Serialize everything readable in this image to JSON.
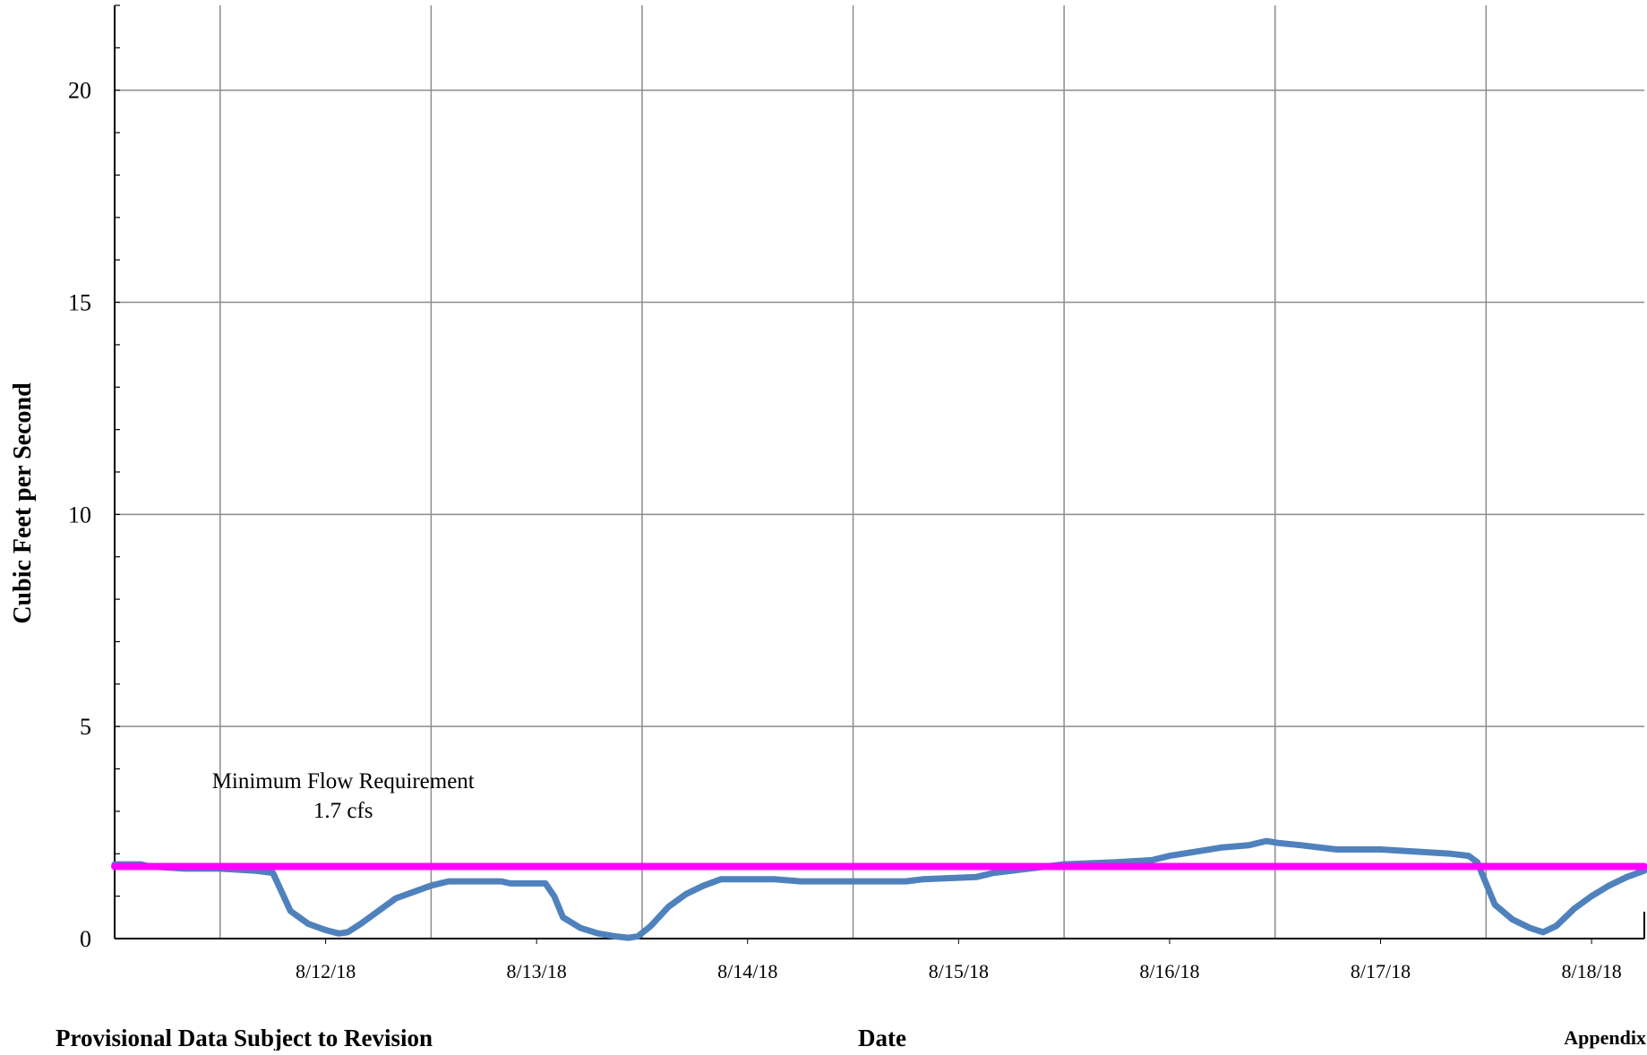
{
  "chart_data": {
    "type": "line",
    "ylabel": "Cubic Feet per Second",
    "xlabel": "Date",
    "ylim": [
      0,
      22
    ],
    "xlim": [
      "2018-08-11 12:00",
      "2018-08-18 18:00"
    ],
    "yticks": [
      0,
      5,
      10,
      15,
      20
    ],
    "xtick_labels": [
      "8/12/18",
      "8/13/18",
      "8/14/18",
      "8/15/18",
      "8/16/18",
      "8/17/18",
      "8/18/18"
    ],
    "grid": true,
    "series": [
      {
        "color": "#4f81bd",
        "points": [
          [
            "2018-08-11 12:00",
            1.75
          ],
          [
            "2018-08-11 15:00",
            1.75
          ],
          [
            "2018-08-11 16:00",
            1.7
          ],
          [
            "2018-08-11 20:00",
            1.65
          ],
          [
            "2018-08-12 00:00",
            1.65
          ],
          [
            "2018-08-12 04:00",
            1.6
          ],
          [
            "2018-08-12 06:00",
            1.55
          ],
          [
            "2018-08-12 07:00",
            1.1
          ],
          [
            "2018-08-12 08:00",
            0.65
          ],
          [
            "2018-08-12 10:00",
            0.35
          ],
          [
            "2018-08-12 12:00",
            0.2
          ],
          [
            "2018-08-12 13:30",
            0.12
          ],
          [
            "2018-08-12 14:30",
            0.15
          ],
          [
            "2018-08-12 16:00",
            0.35
          ],
          [
            "2018-08-12 18:00",
            0.65
          ],
          [
            "2018-08-12 20:00",
            0.95
          ],
          [
            "2018-08-12 22:00",
            1.1
          ],
          [
            "2018-08-13 00:00",
            1.25
          ],
          [
            "2018-08-13 02:00",
            1.35
          ],
          [
            "2018-08-13 08:00",
            1.35
          ],
          [
            "2018-08-13 09:00",
            1.3
          ],
          [
            "2018-08-13 13:00",
            1.3
          ],
          [
            "2018-08-13 14:00",
            1.0
          ],
          [
            "2018-08-13 15:00",
            0.5
          ],
          [
            "2018-08-13 17:00",
            0.25
          ],
          [
            "2018-08-13 19:00",
            0.12
          ],
          [
            "2018-08-13 21:00",
            0.05
          ],
          [
            "2018-08-13 22:30",
            0.02
          ],
          [
            "2018-08-13 23:30",
            0.05
          ],
          [
            "2018-08-14 01:00",
            0.3
          ],
          [
            "2018-08-14 03:00",
            0.75
          ],
          [
            "2018-08-14 05:00",
            1.05
          ],
          [
            "2018-08-14 07:00",
            1.25
          ],
          [
            "2018-08-14 09:00",
            1.4
          ],
          [
            "2018-08-14 15:00",
            1.4
          ],
          [
            "2018-08-14 18:00",
            1.35
          ],
          [
            "2018-08-15 06:00",
            1.35
          ],
          [
            "2018-08-15 08:00",
            1.4
          ],
          [
            "2018-08-15 14:00",
            1.45
          ],
          [
            "2018-08-15 16:00",
            1.55
          ],
          [
            "2018-08-15 20:00",
            1.65
          ],
          [
            "2018-08-16 00:00",
            1.75
          ],
          [
            "2018-08-16 06:00",
            1.8
          ],
          [
            "2018-08-16 10:00",
            1.85
          ],
          [
            "2018-08-16 12:00",
            1.95
          ],
          [
            "2018-08-16 15:00",
            2.05
          ],
          [
            "2018-08-16 18:00",
            2.15
          ],
          [
            "2018-08-16 21:00",
            2.2
          ],
          [
            "2018-08-16 23:00",
            2.3
          ],
          [
            "2018-08-17 00:30",
            2.25
          ],
          [
            "2018-08-17 03:00",
            2.2
          ],
          [
            "2018-08-17 05:00",
            2.15
          ],
          [
            "2018-08-17 07:00",
            2.1
          ],
          [
            "2018-08-17 12:00",
            2.1
          ],
          [
            "2018-08-17 16:00",
            2.05
          ],
          [
            "2018-08-17 20:00",
            2.0
          ],
          [
            "2018-08-17 22:00",
            1.95
          ],
          [
            "2018-08-17 23:00",
            1.8
          ],
          [
            "2018-08-18 00:00",
            1.3
          ],
          [
            "2018-08-18 01:00",
            0.8
          ],
          [
            "2018-08-18 03:00",
            0.45
          ],
          [
            "2018-08-18 05:00",
            0.25
          ],
          [
            "2018-08-18 06:30",
            0.15
          ],
          [
            "2018-08-18 08:00",
            0.3
          ],
          [
            "2018-08-18 10:00",
            0.7
          ],
          [
            "2018-08-18 12:00",
            1.0
          ],
          [
            "2018-08-18 14:00",
            1.25
          ],
          [
            "2018-08-18 16:00",
            1.45
          ],
          [
            "2018-08-18 18:00",
            1.6
          ]
        ]
      },
      {
        "color": "#ff00ff",
        "points": [
          [
            "2018-08-11 12:00",
            1.7
          ],
          [
            "2018-08-18 18:00",
            1.7
          ]
        ]
      }
    ],
    "annotations": [
      {
        "text": "Minimum Flow Requirement",
        "x": "2018-08-12 14:00",
        "y": 3.55
      },
      {
        "text": "1.7 cfs",
        "x": "2018-08-12 14:00",
        "y": 2.85
      }
    ]
  },
  "footer": {
    "left": "Provisional Data Subject to Revision",
    "center": "Date",
    "right": "Appendix"
  }
}
